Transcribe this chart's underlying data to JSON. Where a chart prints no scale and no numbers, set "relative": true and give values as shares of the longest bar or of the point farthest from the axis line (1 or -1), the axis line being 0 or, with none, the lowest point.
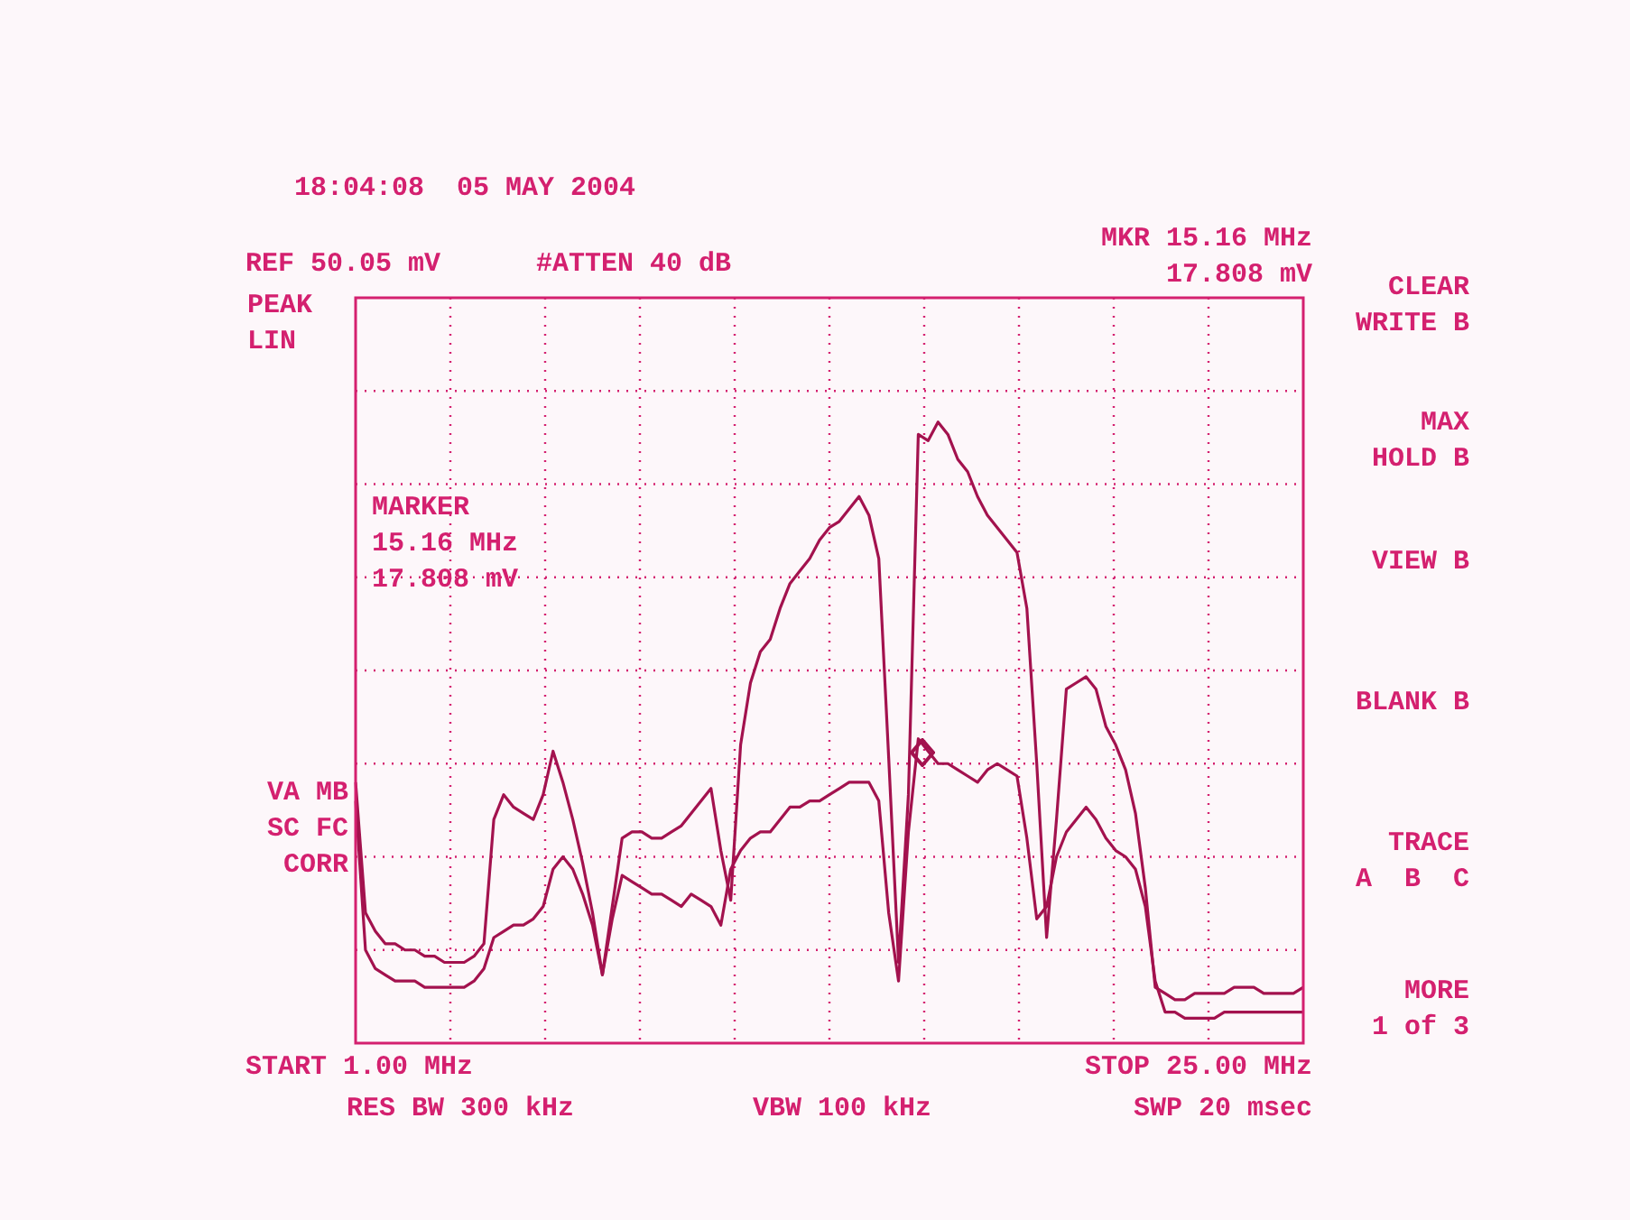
{
  "chart_data": {
    "type": "line",
    "title": "18:04:08  05 MAY 2004",
    "relative": true,
    "grid": true,
    "legend": false,
    "marker": "none",
    "line_style": "solid",
    "categories": [
      null,
      null,
      null,
      null,
      null,
      null,
      null,
      null,
      null,
      null,
      null,
      null,
      null,
      null,
      null,
      null,
      null,
      null,
      null,
      null,
      null,
      null,
      null,
      null,
      null,
      null,
      null,
      null,
      null,
      null,
      null,
      null,
      null,
      null,
      null,
      null,
      null,
      null,
      null,
      null,
      null,
      null,
      null,
      null,
      null,
      null,
      null,
      null,
      null,
      null,
      null,
      null,
      null,
      null,
      null,
      null,
      null,
      null,
      null,
      null,
      null,
      null,
      null,
      null,
      null,
      null,
      null,
      null,
      null,
      null,
      null,
      null,
      null,
      null,
      null,
      null,
      null,
      null,
      null,
      null,
      null,
      null,
      null,
      null,
      null,
      null,
      null,
      null,
      null,
      null,
      null,
      null,
      null,
      null,
      null,
      null,
      null
    ],
    "series": [
      {
        "color": "#a3124e",
        "values": [
          0.42,
          0.21,
          0.18,
          0.16,
          0.16,
          0.15,
          0.15,
          0.14,
          0.14,
          0.13,
          0.13,
          0.13,
          0.14,
          0.16,
          0.36,
          0.4,
          0.38,
          0.37,
          0.36,
          0.4,
          0.47,
          0.42,
          0.36,
          0.29,
          0.21,
          0.11,
          0.22,
          0.33,
          0.34,
          0.34,
          0.33,
          0.33,
          0.34,
          0.35,
          0.37,
          0.39,
          0.41,
          0.31,
          0.23,
          0.48,
          0.58,
          0.63,
          0.65,
          0.7,
          0.74,
          0.76,
          0.78,
          0.81,
          0.83,
          0.84,
          0.86,
          0.88,
          0.85,
          0.78,
          0.46,
          0.13,
          0.4,
          0.98,
          0.97,
          1.0,
          0.98,
          0.94,
          0.92,
          0.88,
          0.85,
          0.83,
          0.81,
          0.79,
          0.7,
          0.45,
          0.17,
          0.36,
          0.57,
          0.58,
          0.59,
          0.57,
          0.51,
          0.48,
          0.44,
          0.37,
          0.25,
          0.09,
          0.08,
          0.07,
          0.07,
          0.08,
          0.08,
          0.08,
          0.08,
          0.09,
          0.09,
          0.09,
          0.08,
          0.08,
          0.08,
          0.08,
          0.09
        ]
      },
      {
        "color": "#a3124e",
        "values": [
          0.39,
          0.15,
          0.12,
          0.11,
          0.1,
          0.1,
          0.1,
          0.09,
          0.09,
          0.09,
          0.09,
          0.09,
          0.1,
          0.12,
          0.17,
          0.18,
          0.19,
          0.19,
          0.2,
          0.22,
          0.28,
          0.3,
          0.28,
          0.24,
          0.19,
          0.11,
          0.2,
          0.27,
          0.26,
          0.25,
          0.24,
          0.24,
          0.23,
          0.22,
          0.24,
          0.23,
          0.22,
          0.19,
          0.28,
          0.31,
          0.33,
          0.34,
          0.34,
          0.36,
          0.38,
          0.38,
          0.39,
          0.39,
          0.4,
          0.41,
          0.42,
          0.42,
          0.42,
          0.39,
          0.21,
          0.1,
          0.34,
          0.49,
          0.47,
          0.45,
          0.45,
          0.44,
          0.43,
          0.42,
          0.44,
          0.45,
          0.44,
          0.43,
          0.33,
          0.2,
          0.22,
          0.3,
          0.34,
          0.36,
          0.38,
          0.36,
          0.33,
          0.31,
          0.3,
          0.28,
          0.22,
          0.1,
          0.05,
          0.05,
          0.04,
          0.04,
          0.04,
          0.04,
          0.05,
          0.05,
          0.05,
          0.05,
          0.05,
          0.05,
          0.05,
          0.05,
          0.05
        ]
      }
    ],
    "annotations": [
      "REF 50.05 mV",
      "#ATTEN 40 dB",
      "MKR 15.16 MHz\n17.808 mV",
      "MARKER\n15.16 MHz\n17.808 mV",
      "PEAK\nLIN",
      "VA MB\nSC FC\nCORR",
      "CLEAR\nWRITE B",
      "MAX\nHOLD B",
      "VIEW B",
      "BLANK B",
      "TRACE\nA  B  C",
      "MORE\n1 of 3",
      "RES BW 300 kHz",
      "VBW 100 kHz",
      "SWP 20 msec",
      "START 1.00 MHz",
      "STOP 25.00 MHz"
    ]
  }
}
